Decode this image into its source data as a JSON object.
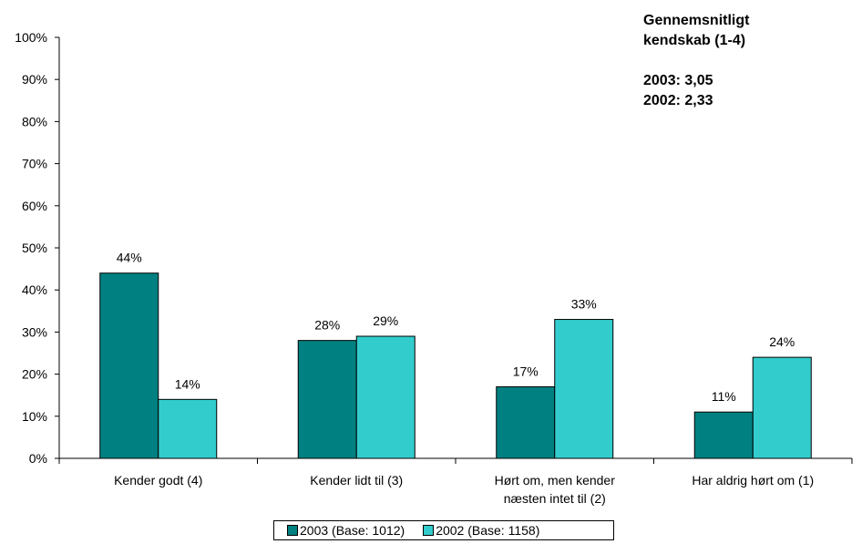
{
  "chart_data": {
    "type": "bar",
    "categories": [
      [
        "Kender godt (4)"
      ],
      [
        "Kender lidt til (3)"
      ],
      [
        "Hørt om, men kender",
        "næsten intet til (2)"
      ],
      [
        "Har aldrig hørt om (1)"
      ]
    ],
    "series": [
      {
        "name": "2003 (Base: 1012)",
        "values": [
          44,
          28,
          17,
          11
        ],
        "color": "#008080"
      },
      {
        "name": "2002 (Base: 1158)",
        "values": [
          14,
          29,
          33,
          24
        ],
        "color": "#33CCCC"
      }
    ],
    "ylim": [
      0,
      100
    ],
    "yticks": [
      "0%",
      "10%",
      "20%",
      "30%",
      "40%",
      "50%",
      "60%",
      "70%",
      "80%",
      "90%",
      "100%"
    ],
    "value_suffix": "%",
    "grid": false,
    "legend": "bottom",
    "annotation": {
      "line1": "Gennemsnitligt",
      "line2": "kendskab (1-4)",
      "line3": "2003: 3,05",
      "line4": "2002: 2,33"
    }
  }
}
